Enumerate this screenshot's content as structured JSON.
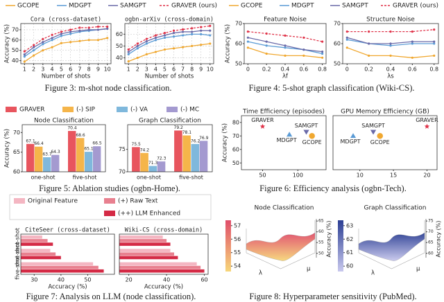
{
  "captions": [
    "Figure 3: m-shot node classification.",
    "Figure 4: 5-shot graph classification (Wiki-CS).",
    "Figure 5: Ablation studies (ogbn-Home).",
    "Figure 6: Efficiency analysis (ogbn-Tech).",
    "Figure 7: Analysis on LLM (node classification).",
    "Figure 8: Hyperparameter sensitivity (PubMed)."
  ],
  "chart_data": [
    {
      "type": "line",
      "title": "Cora (cross-dataset)",
      "xlabel": "Number of shots",
      "ylabel": "Accuracy (%)",
      "grid": true,
      "x": [
        1,
        2,
        3,
        4,
        5,
        6,
        7,
        8,
        9,
        10
      ],
      "xlim": [
        0.6,
        10.4
      ],
      "xticks": [
        1,
        2,
        3,
        4,
        5,
        6,
        7,
        8,
        9,
        10
      ],
      "ylim": [
        37,
        76
      ],
      "yticks": [
        40,
        50,
        60,
        70
      ],
      "series": [
        {
          "name": "GCOPE",
          "color": "#f0a830",
          "values": [
            39,
            45,
            50,
            53,
            57,
            58,
            59,
            60,
            60,
            62
          ]
        },
        {
          "name": "MDGPT",
          "color": "#5b9bd5",
          "values": [
            44,
            50,
            56,
            60,
            64,
            66,
            68,
            69,
            70,
            71
          ]
        },
        {
          "name": "SAMGPT",
          "color": "#6a6aa8",
          "values": [
            46,
            53,
            58,
            62,
            66,
            68,
            69,
            70,
            70,
            71
          ]
        },
        {
          "name": "GRAVER (ours)",
          "color": "#e0344a",
          "dashed": true,
          "values": [
            49,
            55,
            61,
            65,
            68,
            70,
            72,
            72,
            73,
            73
          ]
        }
      ]
    },
    {
      "type": "line",
      "title": "ogbn-arXiv (cross-domain)",
      "xlabel": "Number of shots",
      "grid": true,
      "x": [
        1,
        2,
        3,
        4,
        5,
        6,
        7,
        8,
        9,
        10
      ],
      "xlim": [
        0.6,
        10.4
      ],
      "xticks": [
        1,
        2,
        3,
        4,
        5,
        6,
        7,
        8,
        9,
        10
      ],
      "ylim": [
        35,
        69
      ],
      "yticks": [
        40,
        50,
        60
      ],
      "series": [
        {
          "color": "#f0a830",
          "values": [
            37,
            40,
            43,
            45,
            47,
            48,
            49,
            50,
            51,
            52
          ]
        },
        {
          "color": "#5b9bd5",
          "values": [
            43,
            48,
            52,
            55,
            57,
            58,
            59,
            60,
            60,
            59
          ]
        },
        {
          "color": "#6a6aa8",
          "values": [
            45,
            50,
            54,
            57,
            59,
            61,
            62,
            62,
            63,
            63
          ]
        },
        {
          "color": "#e0344a",
          "dashed": true,
          "values": [
            47,
            52,
            56,
            59,
            61,
            63,
            64,
            65,
            66,
            67
          ]
        }
      ]
    },
    {
      "type": "line",
      "title": "Feature Noise",
      "xlabel": "λf",
      "ylabel": "Accuracy (%)",
      "x": [
        0,
        0.2,
        0.4,
        0.6,
        0.8
      ],
      "xlim": [
        -0.04,
        0.84
      ],
      "xticks": [
        0,
        0.2,
        0.4,
        0.6,
        0.8
      ],
      "ylim": [
        50,
        70
      ],
      "yticks": [
        50,
        60,
        70
      ],
      "series": [
        {
          "name": "GCOPE",
          "color": "#f0a830",
          "values": [
            58,
            55,
            54,
            54,
            53
          ]
        },
        {
          "name": "MDGPT",
          "color": "#5b9bd5",
          "values": [
            61,
            59,
            58,
            57,
            55
          ]
        },
        {
          "name": "SAMGPT",
          "color": "#6a6aa8",
          "values": [
            63,
            61,
            59,
            57,
            56
          ]
        },
        {
          "name": "GRAVER (ours)",
          "color": "#e0344a",
          "dashed": true,
          "values": [
            66,
            65,
            64,
            63,
            61
          ]
        }
      ]
    },
    {
      "type": "line",
      "title": "Structure Noise",
      "xlabel": "λs",
      "x": [
        0,
        0.2,
        0.4,
        0.6,
        0.8
      ],
      "xlim": [
        -0.04,
        0.84
      ],
      "xticks": [
        0,
        0.2,
        0.4,
        0.6,
        0.8
      ],
      "ylim": [
        50,
        70
      ],
      "yticks": [
        50,
        60,
        70
      ],
      "series": [
        {
          "color": "#f0a830",
          "values": [
            58,
            54,
            54,
            53,
            54
          ]
        },
        {
          "color": "#5b9bd5",
          "values": [
            62,
            60,
            59,
            60,
            60
          ]
        },
        {
          "color": "#6a6aa8",
          "values": [
            63,
            60,
            60,
            61,
            61
          ]
        },
        {
          "color": "#e0344a",
          "dashed": true,
          "values": [
            66,
            66,
            66,
            66,
            67
          ]
        }
      ]
    },
    {
      "type": "bar",
      "title": "Node Classification",
      "ylabel": "Accuracy (%)",
      "categories": [
        "one-shot",
        "five-shot"
      ],
      "ylim": [
        60,
        72
      ],
      "yticks": [
        60,
        65,
        70
      ],
      "series": [
        {
          "name": "GRAVER",
          "color": "#e8555e",
          "values": [
            67.1,
            70.4
          ]
        },
        {
          "name": "(-) SIP",
          "color": "#f5b54a",
          "values": [
            66.4,
            68.6
          ]
        },
        {
          "name": "(-) VA",
          "color": "#7fb8dc",
          "values": [
            63.7,
            65.1
          ]
        },
        {
          "name": "(-) MC",
          "color": "#a49ad0",
          "values": [
            64.3,
            66.5
          ]
        }
      ]
    },
    {
      "type": "bar",
      "title": "Graph Classification",
      "categories": [
        "one-shot",
        "five-shot"
      ],
      "ylim": [
        70,
        80.5
      ],
      "yticks": [
        70,
        75
      ],
      "series": [
        {
          "color": "#e8555e",
          "values": [
            75.5,
            79.2
          ]
        },
        {
          "color": "#f5b54a",
          "values": [
            74.2,
            78.1
          ]
        },
        {
          "color": "#7fb8dc",
          "values": [
            71.3,
            76.2
          ]
        },
        {
          "color": "#a49ad0",
          "values": [
            72.3,
            76.9
          ]
        }
      ]
    },
    {
      "type": "scatter",
      "title": "Time Efficiency (episodes)",
      "ylabel": "Accuracy (%)",
      "xlim": [
        20,
        140
      ],
      "xticks": [
        50,
        100
      ],
      "ylim": [
        45,
        85
      ],
      "yticks": [
        50,
        60,
        70,
        80
      ],
      "series": [
        {
          "name": "GRAVER",
          "color": "#e0344a",
          "marker": "star",
          "x": [
            50
          ],
          "values": [
            77
          ]
        },
        {
          "name": "SAMGPT",
          "color": "#6a6aa8",
          "marker": "triangle-down",
          "x": [
            112
          ],
          "values": [
            73
          ]
        },
        {
          "name": "MDGPT",
          "color": "#5b9bd5",
          "marker": "triangle",
          "x": [
            88
          ],
          "values": [
            71
          ]
        },
        {
          "name": "GCOPE",
          "color": "#f0a830",
          "marker": "circle",
          "x": [
            120
          ],
          "values": [
            70
          ]
        }
      ]
    },
    {
      "type": "scatter",
      "title": "GPU Memory Efficiency (GB)",
      "xlim": [
        6,
        21.5
      ],
      "xticks": [
        10,
        15,
        20
      ],
      "ylim": [
        45,
        85
      ],
      "series": [
        {
          "name": "GRAVER",
          "color": "#e0344a",
          "marker": "star",
          "x": [
            20
          ],
          "values": [
            77
          ]
        },
        {
          "name": "SAMGPT",
          "color": "#6a6aa8",
          "marker": "triangle-down",
          "x": [
            12
          ],
          "values": [
            73
          ]
        },
        {
          "name": "MDGPT",
          "color": "#5b9bd5",
          "marker": "triangle",
          "x": [
            9
          ],
          "values": [
            70
          ]
        },
        {
          "name": "GCOPE",
          "color": "#f0a830",
          "marker": "circle",
          "x": [
            13
          ],
          "values": [
            70
          ]
        }
      ]
    },
    {
      "type": "hbar",
      "title": "CiteSeer (cross-dataset)",
      "xlabel": "Accuracy (%)",
      "categories": [
        "zero-shot",
        "one-shot",
        "five-shot"
      ],
      "xlim": [
        25,
        60
      ],
      "xticks": [
        30,
        40,
        50
      ],
      "series": [
        {
          "name": "Original Feature",
          "color": "#f4b6c2",
          "values": [
            33,
            36,
            52
          ]
        },
        {
          "name": "(+) Raw Text",
          "color": "#e8808f",
          "values": [
            35,
            38,
            54
          ]
        },
        {
          "name": "(++) LLM Enhanced",
          "color": "#d42a45",
          "values": [
            37,
            40,
            56
          ]
        }
      ]
    },
    {
      "type": "hbar",
      "title": "Wiki-CS (cross-domain)",
      "xlabel": "Accuracy (%)",
      "categories": [
        "zero-shot",
        "one-shot",
        "five-shot"
      ],
      "xlim": [
        15,
        62
      ],
      "xticks": [
        20,
        40,
        60
      ],
      "series": [
        {
          "color": "#f4b6c2",
          "values": [
            38,
            42,
            56
          ]
        },
        {
          "color": "#e8808f",
          "values": [
            40,
            44,
            58
          ]
        },
        {
          "color": "#d42a45",
          "values": [
            42,
            46,
            60
          ]
        }
      ]
    },
    {
      "type": "surface",
      "title": "Node Classification",
      "xlabel": "λ",
      "ylabel": "μ",
      "zlabel": "Accuracy (%)",
      "colormap": [
        "#f7d77a",
        "#e04e6a"
      ],
      "clim": [
        53.6,
        57.4
      ],
      "cticks": [
        54,
        55,
        56,
        57
      ],
      "zlim": [
        48,
        66
      ],
      "zticks": [
        50,
        55,
        60,
        65
      ]
    },
    {
      "type": "surface",
      "title": "Graph Classification",
      "xlabel": "λ",
      "ylabel": "μ",
      "zlabel": "Accuracy (%)",
      "colormap": [
        "#c9c9ee",
        "#2c3f94"
      ],
      "clim": [
        59.6,
        63.4
      ],
      "cticks": [
        60,
        61,
        62,
        63
      ],
      "zlim": [
        58,
        76
      ],
      "zticks": [
        60,
        65,
        70,
        75
      ]
    }
  ]
}
